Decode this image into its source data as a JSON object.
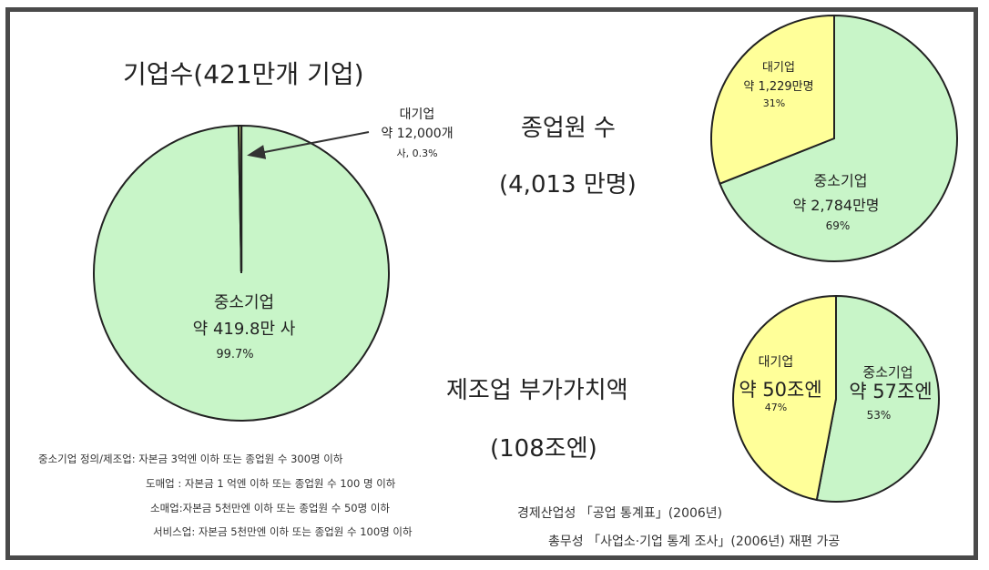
{
  "notes": [
    "중소기업 정의/제조업: 자본금 3억엔 이하 또는 종업원 수 300명 이하",
    "도매업 : 자본금 1 억엔 이하 또는 종업원 수 100 명 이하",
    "소매업:자본금 5천만엔 이하 또는 종업원 수 50명 이하",
    "서비스업: 자본금 5천만엔 이하 또는 종업원 수 100명 이하"
  ],
  "sources": [
    "경제산업성 「공업 통계표」(2006년)",
    "총무성 「사업소·기업 통계 조사」(2006년) 재편 가공"
  ],
  "chart_data": [
    {
      "type": "pie",
      "title": "기업수(421만개 기업)",
      "slices": [
        {
          "label": "대기업",
          "value_text": "약 12,000개",
          "pct_text": "사, 0.3%",
          "percent": 0.3,
          "color": "#ffff99"
        },
        {
          "label": "중소기업",
          "value_text": "약 419.8만 사",
          "pct_text": "99.7%",
          "percent": 99.7,
          "color": "#c8f5c8"
        }
      ]
    },
    {
      "type": "pie",
      "title": "종업원 수",
      "subtitle": "(4,013 만명)",
      "slices": [
        {
          "label": "대기업",
          "value_text": "약 1,229만명",
          "pct_text": "31%",
          "percent": 31,
          "color": "#ffff99"
        },
        {
          "label": "중소기업",
          "value_text": "약 2,784만명",
          "pct_text": "69%",
          "percent": 69,
          "color": "#c8f5c8"
        }
      ]
    },
    {
      "type": "pie",
      "title": "제조업 부가가치액",
      "subtitle": "(108조엔)",
      "slices": [
        {
          "label": "대기업",
          "value_text": "약 50조엔",
          "pct_text": "47%",
          "percent": 47,
          "color": "#ffff99"
        },
        {
          "label": "중소기업",
          "value_text": "약 57조엔",
          "pct_text": "53%",
          "percent": 53,
          "color": "#c8f5c8"
        }
      ]
    }
  ]
}
